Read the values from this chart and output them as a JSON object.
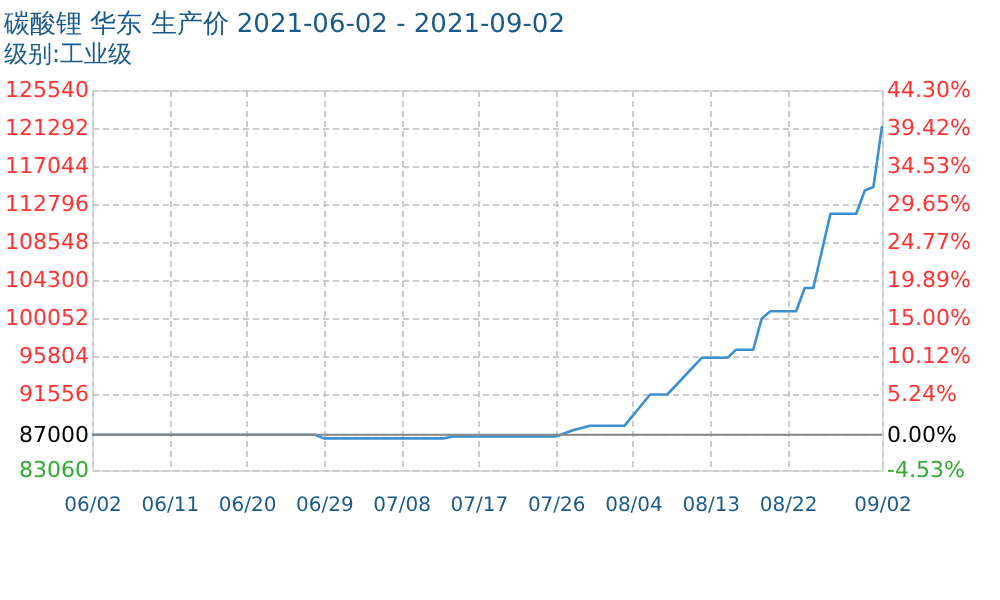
{
  "chart_data": {
    "type": "line",
    "title": "碳酸锂 华东 生产价 2021-06-02 - 2021-09-02",
    "subtitle": "级别:工业级",
    "x": [
      "2021-06-02",
      "2021-06-28",
      "2021-06-29",
      "2021-07-13",
      "2021-07-14",
      "2021-07-26",
      "2021-07-28",
      "2021-07-30",
      "2021-08-03",
      "2021-08-06",
      "2021-08-08",
      "2021-08-12",
      "2021-08-15",
      "2021-08-16",
      "2021-08-18",
      "2021-08-19",
      "2021-08-20",
      "2021-08-23",
      "2021-08-24",
      "2021-08-25",
      "2021-08-27",
      "2021-08-30",
      "2021-08-31",
      "2021-09-01",
      "2021-09-02"
    ],
    "series": [
      {
        "color": "#3c8fd0",
        "values": [
          87000,
          87000,
          86600,
          86600,
          86800,
          86800,
          87500,
          88000,
          88000,
          91500,
          91500,
          95600,
          95600,
          96500,
          96500,
          100000,
          100800,
          100800,
          103400,
          103400,
          111700,
          111700,
          114300,
          114700,
          121500
        ]
      }
    ],
    "xlim": [
      "2021-06-02",
      "2021-09-02"
    ],
    "xticks": [
      {
        "value": "2021-06-02",
        "label": "06/02"
      },
      {
        "value": "2021-06-11",
        "label": "06/11"
      },
      {
        "value": "2021-06-20",
        "label": "06/20"
      },
      {
        "value": "2021-06-29",
        "label": "06/29"
      },
      {
        "value": "2021-07-08",
        "label": "07/08"
      },
      {
        "value": "2021-07-17",
        "label": "07/17"
      },
      {
        "value": "2021-07-26",
        "label": "07/26"
      },
      {
        "value": "2021-08-04",
        "label": "08/04"
      },
      {
        "value": "2021-08-13",
        "label": "08/13"
      },
      {
        "value": "2021-08-22",
        "label": "08/22"
      },
      {
        "value": "2021-09-02",
        "label": "09/02"
      }
    ],
    "ylim": [
      83060,
      125540
    ],
    "yticks": [
      83060,
      87000,
      91556,
      95804,
      100052,
      104300,
      108548,
      112796,
      117044,
      121292,
      125540
    ],
    "y2lim": [
      -4.53,
      44.3
    ],
    "y2ticks": [
      {
        "value": -4.53,
        "label": "-4.53%"
      },
      {
        "value": 0,
        "label": "0.00%"
      },
      {
        "value": 5.24,
        "label": "5.24%"
      },
      {
        "value": 10.12,
        "label": "10.12%"
      },
      {
        "value": 15.0,
        "label": "15.00%"
      },
      {
        "value": 19.89,
        "label": "19.89%"
      },
      {
        "value": 24.77,
        "label": "24.77%"
      },
      {
        "value": 29.65,
        "label": "29.65%"
      },
      {
        "value": 34.53,
        "label": "34.53%"
      },
      {
        "value": 39.42,
        "label": "39.42%"
      },
      {
        "value": 44.3,
        "label": "44.30%"
      }
    ],
    "ref_lines": [
      {
        "axis": "y",
        "value": 87000,
        "color": "#888888"
      }
    ],
    "grid": true,
    "legend": false,
    "marker": "none",
    "line_style": "solid"
  }
}
